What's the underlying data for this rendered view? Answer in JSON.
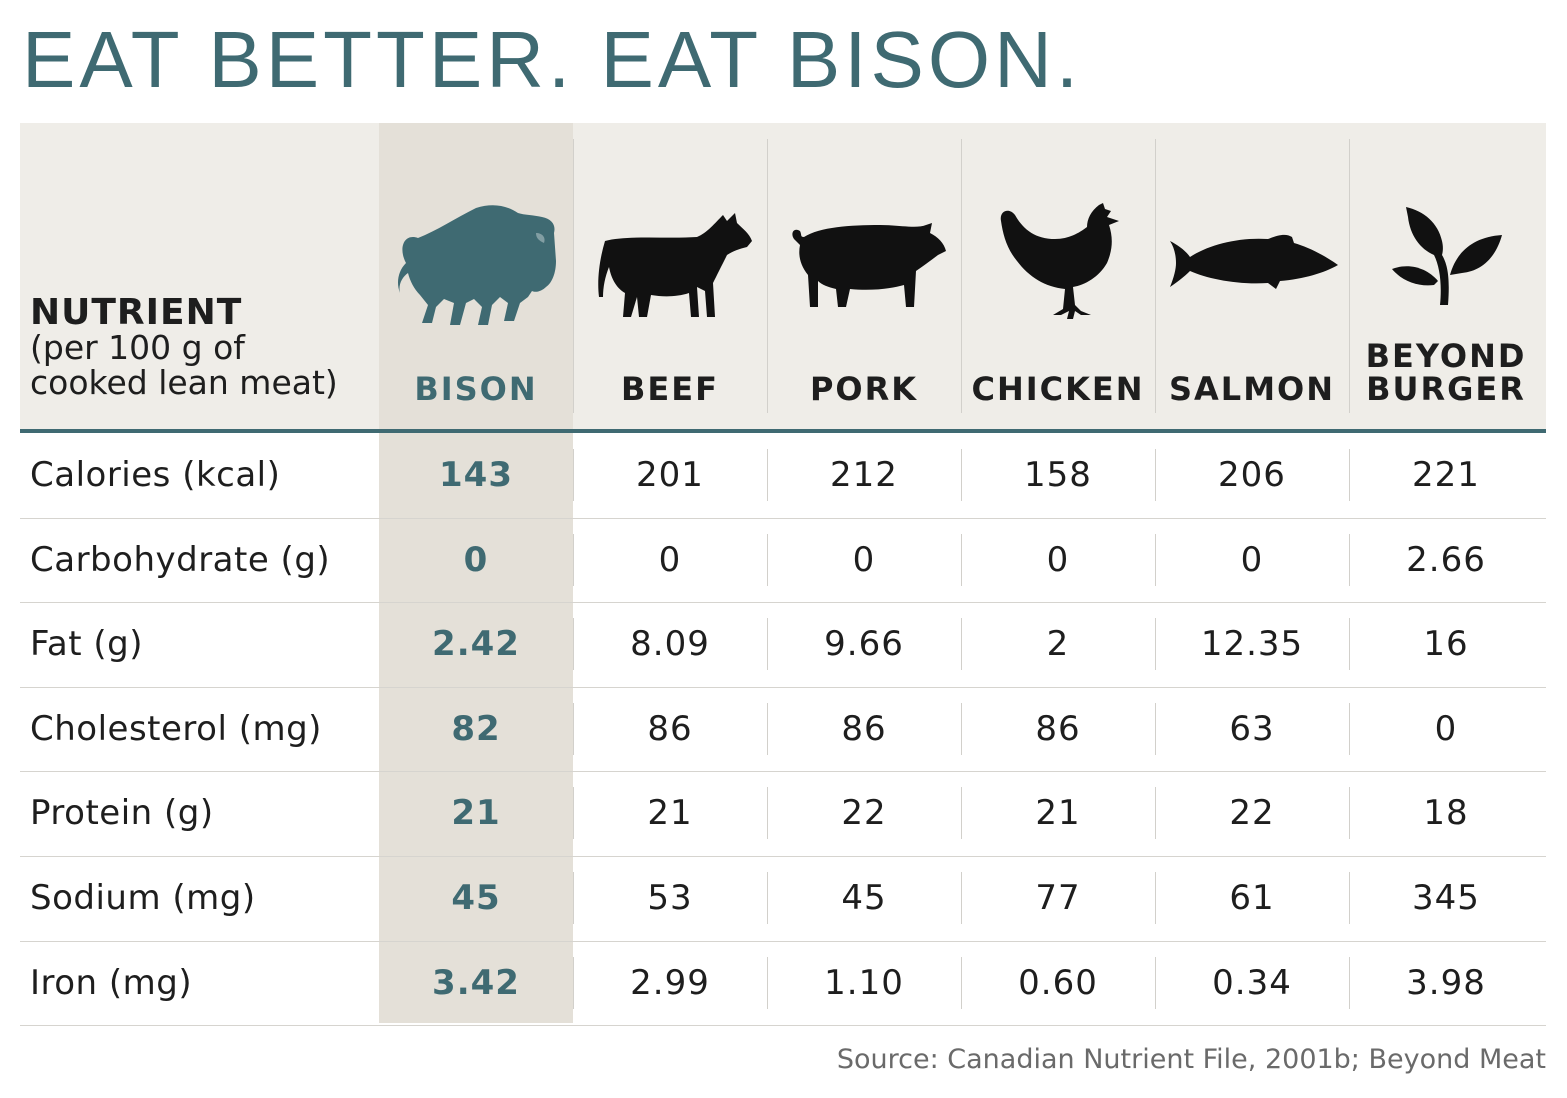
{
  "title": "EAT BETTER. EAT BISON.",
  "header": {
    "nutrient_bold": "NUTRIENT",
    "nutrient_sub": "(per 100 g of\ncooked lean meat)"
  },
  "colors": {
    "accent": "#3f6a72",
    "header_bg": "#efede8",
    "bison_column_bg": "#e4e0d8",
    "text": "#1e1e1e",
    "source_text": "#6a6a6a"
  },
  "columns": [
    {
      "label": "BISON",
      "icon": "bison-icon"
    },
    {
      "label": "BEEF",
      "icon": "cow-icon"
    },
    {
      "label": "PORK",
      "icon": "pig-icon"
    },
    {
      "label": "CHICKEN",
      "icon": "chicken-icon"
    },
    {
      "label": "SALMON",
      "icon": "fish-icon"
    },
    {
      "label": "BEYOND\nBURGER",
      "icon": "leaf-plant-icon"
    }
  ],
  "rows": [
    {
      "label": "Calories (kcal)",
      "values": [
        "143",
        "201",
        "212",
        "158",
        "206",
        "221"
      ]
    },
    {
      "label": "Carbohydrate (g)",
      "values": [
        "0",
        "0",
        "0",
        "0",
        "0",
        "2.66"
      ]
    },
    {
      "label": "Fat (g)",
      "values": [
        "2.42",
        "8.09",
        "9.66",
        "2",
        "12.35",
        "16"
      ]
    },
    {
      "label": "Cholesterol (mg)",
      "values": [
        "82",
        "86",
        "86",
        "86",
        "63",
        "0"
      ]
    },
    {
      "label": "Protein (g)",
      "values": [
        "21",
        "21",
        "22",
        "21",
        "22",
        "18"
      ]
    },
    {
      "label": "Sodium (mg)",
      "values": [
        "45",
        "53",
        "45",
        "77",
        "61",
        "345"
      ]
    },
    {
      "label": "Iron (mg)",
      "values": [
        "3.42",
        "2.99",
        "1.10",
        "0.60",
        "0.34",
        "3.98"
      ]
    }
  ],
  "source": "Source: Canadian Nutrient File, 2001b; Beyond Meat",
  "chart_data": {
    "type": "table",
    "title": "EAT BETTER. EAT BISON.",
    "row_header": "NUTRIENT (per 100 g of cooked lean meat)",
    "columns": [
      "BISON",
      "BEEF",
      "PORK",
      "CHICKEN",
      "SALMON",
      "BEYOND BURGER"
    ],
    "rows": [
      {
        "nutrient": "Calories (kcal)",
        "values": [
          143,
          201,
          212,
          158,
          206,
          221
        ]
      },
      {
        "nutrient": "Carbohydrate (g)",
        "values": [
          0,
          0,
          0,
          0,
          0,
          2.66
        ]
      },
      {
        "nutrient": "Fat (g)",
        "values": [
          2.42,
          8.09,
          9.66,
          2,
          12.35,
          16
        ]
      },
      {
        "nutrient": "Cholesterol (mg)",
        "values": [
          82,
          86,
          86,
          86,
          63,
          0
        ]
      },
      {
        "nutrient": "Protein (g)",
        "values": [
          21,
          21,
          22,
          21,
          22,
          18
        ]
      },
      {
        "nutrient": "Sodium (mg)",
        "values": [
          45,
          53,
          45,
          77,
          61,
          345
        ]
      },
      {
        "nutrient": "Iron (mg)",
        "values": [
          3.42,
          2.99,
          1.1,
          0.6,
          0.34,
          3.98
        ]
      }
    ],
    "highlighted_column": "BISON"
  }
}
